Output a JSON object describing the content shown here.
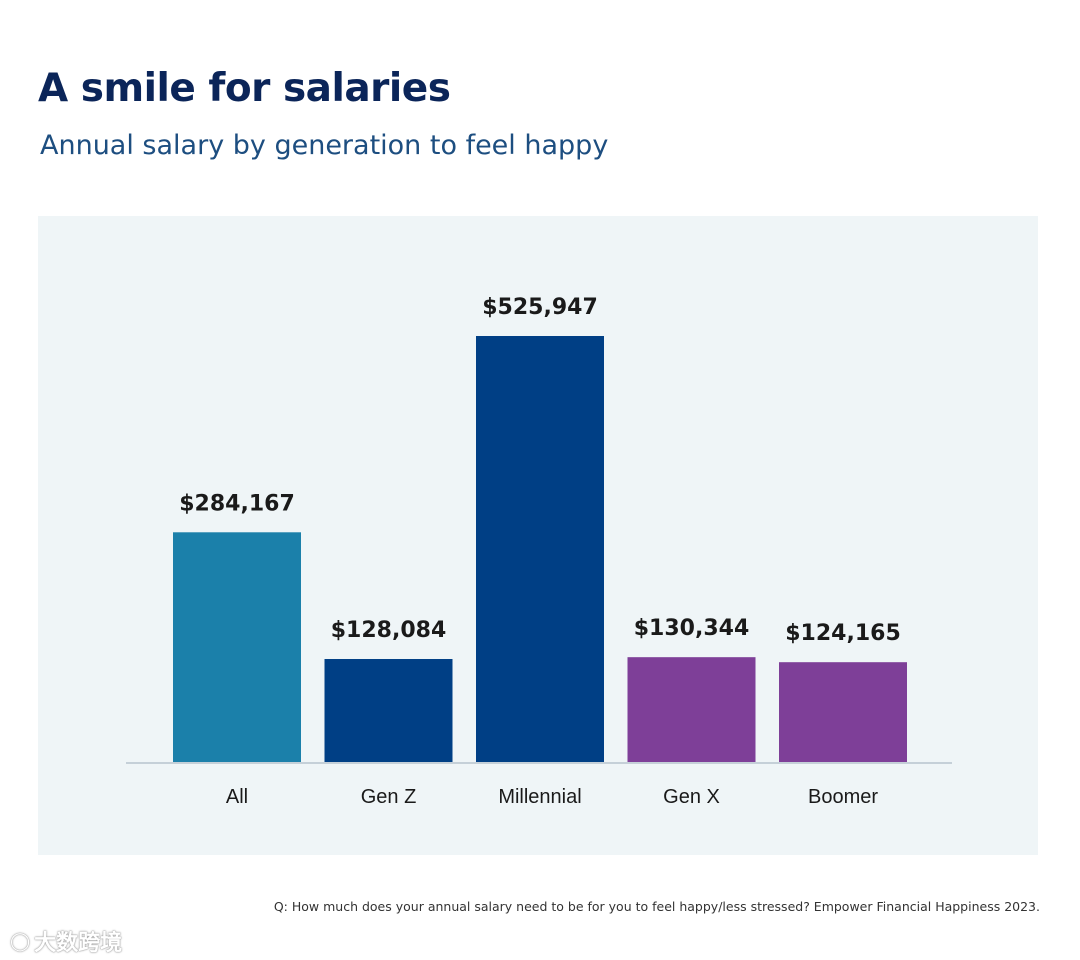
{
  "header": {
    "title": "A smile for salaries",
    "subtitle": "Annual salary by generation to feel happy"
  },
  "chart_data": {
    "type": "bar",
    "title": "A smile for salaries",
    "subtitle": "Annual salary by generation to feel happy",
    "xlabel": "",
    "ylabel": "",
    "categories": [
      "All",
      "Gen Z",
      "Millennial",
      "Gen X",
      "Boomer"
    ],
    "values": [
      284167,
      128084,
      525947,
      130344,
      124165
    ],
    "value_labels": [
      "$284,167",
      "$128,084",
      "$525,947",
      "$130,344",
      "$124,165"
    ],
    "colors": [
      "#1b80aa",
      "#003f85",
      "#003f85",
      "#7e3f98",
      "#7e3f98"
    ],
    "ylim": [
      0,
      525947
    ],
    "grid": false,
    "legend": "none"
  },
  "footer": {
    "source": "Q: How much does your annual salary need to be for you to feel happy/less stressed? Empower Financial Happiness 2023."
  },
  "watermark": {
    "text": "大数跨境"
  }
}
